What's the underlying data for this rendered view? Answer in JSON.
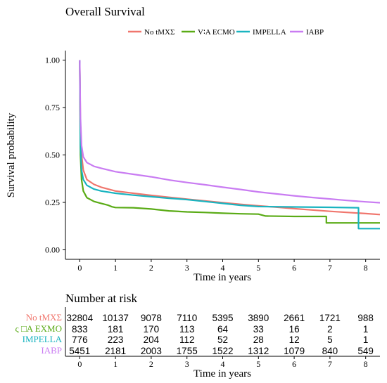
{
  "chart_data": {
    "type": "line",
    "title": "Overall Survival",
    "xlabel": "Time in years",
    "ylabel": "Survival probability",
    "xlim": [
      -0.4,
      8.4
    ],
    "ylim": [
      -0.05,
      1.05
    ],
    "x_ticks": [
      "0",
      "1",
      "2",
      "3",
      "4",
      "5",
      "6",
      "7",
      "8"
    ],
    "y_ticks": [
      "0.00",
      "0.25",
      "0.50",
      "0.75",
      "1.00"
    ],
    "grid": false,
    "legend_position": "top",
    "series": [
      {
        "name": "No tMXΣ",
        "color": "#F0766D",
        "points": [
          [
            0,
            1.0
          ],
          [
            0.02,
            0.65
          ],
          [
            0.05,
            0.5
          ],
          [
            0.1,
            0.42
          ],
          [
            0.2,
            0.37
          ],
          [
            0.4,
            0.345
          ],
          [
            0.6,
            0.33
          ],
          [
            1,
            0.31
          ],
          [
            1.5,
            0.298
          ],
          [
            2,
            0.287
          ],
          [
            2.5,
            0.277
          ],
          [
            3,
            0.267
          ],
          [
            3.5,
            0.258
          ],
          [
            4,
            0.249
          ],
          [
            4.5,
            0.24
          ],
          [
            5,
            0.232
          ],
          [
            5.5,
            0.225
          ],
          [
            6,
            0.217
          ],
          [
            6.5,
            0.21
          ],
          [
            7,
            0.203
          ],
          [
            7.5,
            0.197
          ],
          [
            8,
            0.191
          ],
          [
            8.4,
            0.186
          ]
        ]
      },
      {
        "name": "V∶A ECMO",
        "color": "#5AAB16",
        "points": [
          [
            0,
            1.0
          ],
          [
            0.02,
            0.5
          ],
          [
            0.05,
            0.37
          ],
          [
            0.1,
            0.31
          ],
          [
            0.2,
            0.275
          ],
          [
            0.4,
            0.255
          ],
          [
            0.6,
            0.245
          ],
          [
            0.8,
            0.235
          ],
          [
            0.9,
            0.227
          ],
          [
            1,
            0.223
          ],
          [
            1.5,
            0.222
          ],
          [
            2,
            0.215
          ],
          [
            2.5,
            0.205
          ],
          [
            3,
            0.2
          ],
          [
            3.5,
            0.197
          ],
          [
            4,
            0.193
          ],
          [
            4.5,
            0.19
          ],
          [
            5,
            0.188
          ],
          [
            5.2,
            0.178
          ],
          [
            6,
            0.176
          ],
          [
            6.9,
            0.176
          ],
          [
            6.9,
            0.142
          ],
          [
            8.4,
            0.142
          ]
        ]
      },
      {
        "name": "IMPELLA",
        "color": "#1AB4C0",
        "points": [
          [
            0,
            1.0
          ],
          [
            0.02,
            0.55
          ],
          [
            0.05,
            0.42
          ],
          [
            0.1,
            0.37
          ],
          [
            0.2,
            0.34
          ],
          [
            0.4,
            0.32
          ],
          [
            0.6,
            0.31
          ],
          [
            1,
            0.298
          ],
          [
            1.5,
            0.288
          ],
          [
            2,
            0.28
          ],
          [
            2.5,
            0.272
          ],
          [
            3,
            0.265
          ],
          [
            3.5,
            0.255
          ],
          [
            4,
            0.245
          ],
          [
            4.5,
            0.235
          ],
          [
            5,
            0.228
          ],
          [
            6,
            0.226
          ],
          [
            7,
            0.224
          ],
          [
            7.8,
            0.222
          ],
          [
            7.8,
            0.112
          ],
          [
            8.4,
            0.112
          ]
        ]
      },
      {
        "name": "IABP",
        "color": "#C97CF2",
        "points": [
          [
            0,
            1.0
          ],
          [
            0.02,
            0.7
          ],
          [
            0.05,
            0.55
          ],
          [
            0.1,
            0.49
          ],
          [
            0.2,
            0.46
          ],
          [
            0.4,
            0.44
          ],
          [
            0.6,
            0.43
          ],
          [
            1,
            0.412
          ],
          [
            1.5,
            0.398
          ],
          [
            2,
            0.385
          ],
          [
            2.5,
            0.368
          ],
          [
            3,
            0.355
          ],
          [
            3.5,
            0.343
          ],
          [
            4,
            0.33
          ],
          [
            4.5,
            0.318
          ],
          [
            5,
            0.305
          ],
          [
            5.5,
            0.295
          ],
          [
            6,
            0.285
          ],
          [
            6.5,
            0.276
          ],
          [
            7,
            0.268
          ],
          [
            7.5,
            0.26
          ],
          [
            8,
            0.253
          ],
          [
            8.4,
            0.248
          ]
        ]
      }
    ]
  },
  "risk_table": {
    "title": "Number at risk",
    "xlabel": "Time in years",
    "times": [
      "0",
      "1",
      "2",
      "3",
      "4",
      "5",
      "6",
      "7",
      "8"
    ],
    "rows": [
      {
        "label": "No tMXΣ",
        "color": "#F0766D",
        "values": [
          "32804",
          "10137",
          "9078",
          "7110",
          "5395",
          "3890",
          "2661",
          "1721",
          "988"
        ]
      },
      {
        "label": "ς □A EXMO",
        "color": "#5AAB16",
        "values": [
          "833",
          "181",
          "170",
          "113",
          "64",
          "33",
          "16",
          "2",
          "1"
        ]
      },
      {
        "label": "IMPELLA",
        "color": "#1AB4C0",
        "values": [
          "776",
          "223",
          "204",
          "112",
          "52",
          "28",
          "12",
          "5",
          "1"
        ]
      },
      {
        "label": "IABP",
        "color": "#C97CF2",
        "values": [
          "5451",
          "2181",
          "2003",
          "1755",
          "1522",
          "1312",
          "1079",
          "840",
          "549"
        ]
      }
    ]
  }
}
